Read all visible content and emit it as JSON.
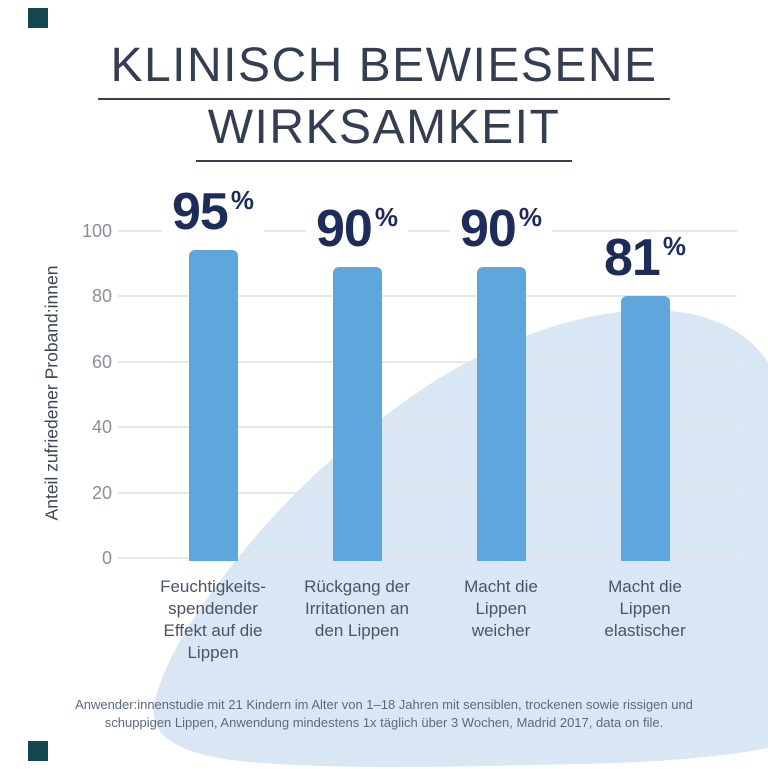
{
  "title": {
    "line1": "KLINISCH BEWIESENE",
    "line2": "WIRKSAMKEIT",
    "color": "#333e51"
  },
  "chart_data": {
    "type": "bar",
    "title": "KLINISCH BEWIESENE WIRKSAMKEIT",
    "ylabel": "Anteil zufriedener Proband:innen",
    "xlabel": "",
    "ylim": [
      0,
      100
    ],
    "yticks": [
      "100",
      "80",
      "60",
      "40",
      "20",
      "0"
    ],
    "grid": true,
    "legend": false,
    "categories": [
      "Feuchtigkeits-spendender Effekt auf die Lippen",
      "Rückgang der Irritationen an den Lippen",
      "Macht die Lippen weicher",
      "Macht die Lippen elastischer"
    ],
    "values": [
      95,
      90,
      90,
      81
    ],
    "unit": "%",
    "bar_color": "#5ea6dc",
    "value_label_color": "#1e2c5a",
    "gridline_color": "#e5e7ea",
    "tick_color": "#8b9097"
  },
  "bars": [
    {
      "pct": "95",
      "category": "Feuchtigkeits-\nspendender\nEffekt auf die\nLippen"
    },
    {
      "pct": "90",
      "category": "Rückgang der\nIrritationen an\nden Lippen"
    },
    {
      "pct": "90",
      "category": "Macht die\nLippen\nweicher"
    },
    {
      "pct": "81",
      "category": "Macht die\nLippen\nelastischer"
    }
  ],
  "axis": {
    "ylabel": "Anteil zufriedener Proband:innen"
  },
  "footnote": {
    "line1": "Anwender:innenstudie mit 21 Kindern im Alter von 1–18 Jahren mit sensiblen, trockenen sowie rissigen und",
    "line2": "schuppigen Lippen, Anwendung mindestens 1x täglich über 3 Wochen, Madrid 2017, data on file."
  },
  "decor": {
    "square_color": "#16464f",
    "blob_color": "#d9e7f5"
  }
}
